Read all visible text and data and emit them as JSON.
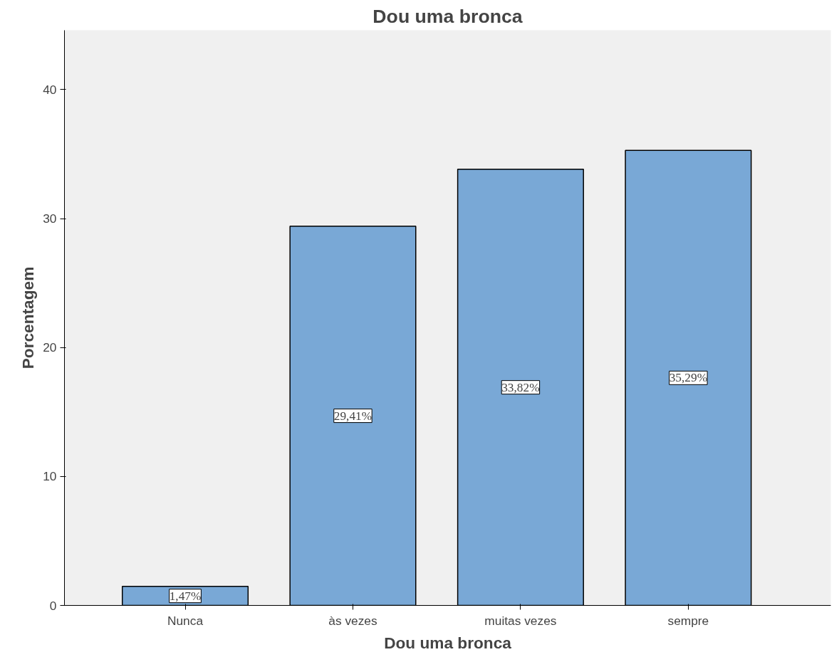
{
  "chart_data": {
    "type": "bar",
    "title": "Dou uma bronca",
    "xlabel": "Dou uma bronca",
    "ylabel": "Porcentagem",
    "categories": [
      "Nunca",
      "às vezes",
      "muitas vezes",
      "sempre"
    ],
    "values": [
      1.47,
      29.41,
      33.82,
      35.29
    ],
    "value_labels": [
      "1,47%",
      "29,41%",
      "33,82%",
      "35,29%"
    ],
    "color": "#79a8d6",
    "ylim": [
      0,
      44.6
    ],
    "yticks": [
      0,
      10,
      20,
      30,
      40
    ]
  }
}
